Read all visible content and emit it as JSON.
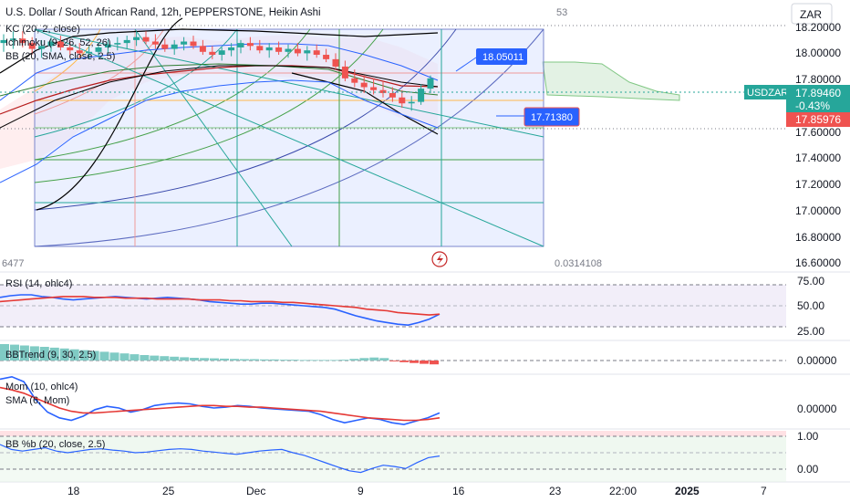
{
  "header": {
    "title": "U.S. Dollar / South African Rand, 12h, PEPPERSTONE, Heikin Ashi",
    "indicators": [
      "KC (20, 2, close)",
      "Ichimoku (9, 26, 52, 26)",
      "BB (20, SMA, close, 2.5)"
    ],
    "top_number": "53",
    "currency_button": "ZAR"
  },
  "price_axis": {
    "ticks": [
      "18.20000",
      "18.00000",
      "17.80000",
      "17.60000",
      "17.40000",
      "17.20000",
      "17.00000",
      "16.80000",
      "16.60000"
    ],
    "symbol_tag": "USDZAR",
    "current_price": "17.89460",
    "change": "-0.43%",
    "second_price": "17.85976"
  },
  "annotations": {
    "level_high": "18.05011",
    "level_low": "17.71380",
    "left_value": "6477",
    "right_value": "0.0314108"
  },
  "panes": {
    "rsi": {
      "label": "RSI (14, ohlc4)",
      "ticks": [
        "75.00",
        "50.00",
        "25.00"
      ]
    },
    "bbtrend": {
      "label": "BBTrend (9, 30, 2.5)",
      "ticks": [
        "0.00000"
      ]
    },
    "mom": {
      "label": "Mom (10, ohlc4)",
      "label2": "SMA (6, Mom)",
      "ticks": [
        "0.00000"
      ]
    },
    "bbpb": {
      "label": "BB %b (20, close, 2.5)",
      "ticks": [
        "1.00",
        "0.00"
      ]
    }
  },
  "time_axis": [
    "18",
    "25",
    "Dec",
    "9",
    "16",
    "23",
    "22:00",
    "2025",
    "7"
  ],
  "colors": {
    "up": "#26a69a",
    "down": "#ef5350",
    "rsi": "#2962ff",
    "rsi_ma": "#e53935",
    "price_tag": "#26a69a",
    "level_tag": "#2962ff",
    "fan_fill": "#dbe4ff"
  },
  "chart_data": {
    "type": "candlestick",
    "style": "Heikin Ashi",
    "y_range": [
      16.6,
      18.3
    ],
    "x_labels": [
      "18",
      "25",
      "Dec",
      "9",
      "16",
      "23",
      "22:00",
      "2025",
      "7"
    ],
    "candles": [
      [
        18.1,
        18.16,
        18.04,
        18.12
      ],
      [
        18.12,
        18.18,
        18.06,
        18.13
      ],
      [
        18.13,
        18.18,
        18.07,
        18.1
      ],
      [
        18.1,
        18.14,
        18.02,
        18.06
      ],
      [
        18.06,
        18.12,
        18.0,
        18.08
      ],
      [
        18.08,
        18.14,
        18.04,
        18.11
      ],
      [
        18.11,
        18.15,
        18.05,
        18.07
      ],
      [
        18.07,
        18.11,
        18.01,
        18.05
      ],
      [
        18.05,
        18.1,
        18.0,
        18.03
      ],
      [
        18.03,
        18.08,
        17.99,
        18.04
      ],
      [
        18.04,
        18.1,
        18.0,
        18.07
      ],
      [
        18.07,
        18.12,
        18.03,
        18.09
      ],
      [
        18.09,
        18.14,
        18.05,
        18.1
      ],
      [
        18.1,
        18.15,
        18.06,
        18.12
      ],
      [
        18.12,
        18.18,
        18.08,
        18.14
      ],
      [
        18.14,
        18.18,
        18.09,
        18.11
      ],
      [
        18.11,
        18.16,
        18.06,
        18.09
      ],
      [
        18.09,
        18.13,
        18.04,
        18.06
      ],
      [
        18.06,
        18.12,
        18.02,
        18.09
      ],
      [
        18.09,
        18.14,
        18.05,
        18.11
      ],
      [
        18.11,
        18.15,
        18.06,
        18.08
      ],
      [
        18.08,
        18.12,
        18.02,
        18.04
      ],
      [
        18.04,
        18.08,
        17.99,
        18.02
      ],
      [
        18.02,
        18.07,
        17.98,
        18.05
      ],
      [
        18.05,
        18.1,
        18.01,
        18.07
      ],
      [
        18.07,
        18.12,
        18.03,
        18.1
      ],
      [
        18.1,
        18.14,
        18.05,
        18.08
      ],
      [
        18.08,
        18.12,
        18.03,
        18.05
      ],
      [
        18.05,
        18.1,
        18.0,
        18.07
      ],
      [
        18.07,
        18.11,
        18.02,
        18.04
      ],
      [
        18.04,
        18.09,
        18.0,
        18.06
      ],
      [
        18.06,
        18.1,
        18.01,
        18.03
      ],
      [
        18.03,
        18.08,
        17.98,
        18.05
      ],
      [
        18.05,
        18.09,
        18.0,
        18.02
      ],
      [
        18.02,
        18.06,
        17.97,
        17.99
      ],
      [
        17.99,
        18.03,
        17.92,
        17.94
      ],
      [
        17.94,
        17.98,
        17.84,
        17.86
      ],
      [
        17.86,
        17.92,
        17.8,
        17.83
      ],
      [
        17.83,
        17.88,
        17.76,
        17.8
      ],
      [
        17.8,
        17.86,
        17.75,
        17.78
      ],
      [
        17.78,
        17.84,
        17.73,
        17.76
      ],
      [
        17.76,
        17.8,
        17.7,
        17.73
      ],
      [
        17.73,
        17.78,
        17.66,
        17.69
      ],
      [
        17.69,
        17.74,
        17.64,
        17.7
      ],
      [
        17.7,
        17.82,
        17.68,
        17.79
      ],
      [
        17.79,
        17.88,
        17.76,
        17.86
      ]
    ],
    "rsi": [
      60,
      62,
      63,
      63,
      61,
      60,
      58,
      57,
      58,
      59,
      60,
      61,
      60,
      59,
      58,
      59,
      60,
      59,
      58,
      57,
      55,
      54,
      53,
      52,
      52,
      53,
      53,
      52,
      51,
      50,
      49,
      48,
      46,
      42,
      38,
      35,
      32,
      30,
      28,
      27,
      30,
      34,
      40
    ],
    "rsi_ma": [
      55,
      56,
      57,
      58,
      59,
      60,
      61,
      61,
      61,
      60,
      60,
      60,
      59,
      59,
      59,
      58,
      58,
      58,
      58,
      57,
      57,
      57,
      56,
      56,
      55,
      55,
      55,
      54,
      54,
      53,
      52,
      51,
      50,
      49,
      48,
      46,
      45,
      44,
      42,
      41,
      40,
      39,
      40
    ],
    "bbtrend": [
      0.6,
      0.58,
      0.55,
      0.52,
      0.5,
      0.47,
      0.44,
      0.41,
      0.38,
      0.35,
      0.32,
      0.29,
      0.26,
      0.23,
      0.2,
      0.18,
      0.16,
      0.14,
      0.12,
      0.1,
      0.09,
      0.08,
      0.07,
      0.06,
      0.05,
      0.05,
      0.04,
      0.04,
      0.03,
      0.03,
      0.02,
      0.02,
      0.02,
      0.02,
      0.03,
      0.06,
      0.09,
      0.11,
      0.09,
      -0.03,
      -0.06,
      -0.09,
      -0.12,
      -0.14
    ],
    "mom": [
      0.35,
      0.38,
      0.32,
      0.1,
      -0.05,
      -0.12,
      -0.15,
      -0.1,
      -0.02,
      0.02,
      0.0,
      -0.05,
      -0.02,
      0.03,
      0.05,
      0.06,
      0.05,
      0.02,
      0.0,
      0.01,
      0.03,
      0.02,
      0.0,
      -0.01,
      -0.02,
      -0.03,
      -0.04,
      -0.08,
      -0.14,
      -0.18,
      -0.15,
      -0.12,
      -0.14,
      -0.18,
      -0.2,
      -0.16,
      -0.12,
      -0.06
    ],
    "mom_sma": [
      0.25,
      0.22,
      0.18,
      0.12,
      0.06,
      0.0,
      -0.04,
      -0.06,
      -0.06,
      -0.05,
      -0.04,
      -0.03,
      -0.02,
      -0.01,
      0.0,
      0.01,
      0.02,
      0.03,
      0.03,
      0.02,
      0.02,
      0.01,
      0.01,
      0.0,
      -0.01,
      -0.02,
      -0.03,
      -0.04,
      -0.06,
      -0.08,
      -0.1,
      -0.12,
      -0.13,
      -0.14,
      -0.15,
      -0.15,
      -0.14,
      -0.12
    ],
    "bbpb": [
      0.75,
      0.6,
      0.55,
      0.6,
      0.65,
      0.55,
      0.5,
      0.55,
      0.6,
      0.62,
      0.58,
      0.55,
      0.5,
      0.52,
      0.56,
      0.6,
      0.62,
      0.6,
      0.55,
      0.52,
      0.48,
      0.45,
      0.5,
      0.55,
      0.58,
      0.6,
      0.5,
      0.42,
      0.3,
      0.18,
      0.06,
      -0.05,
      -0.1,
      0.02,
      0.12,
      0.08,
      0.02,
      0.2,
      0.35,
      0.4
    ]
  }
}
